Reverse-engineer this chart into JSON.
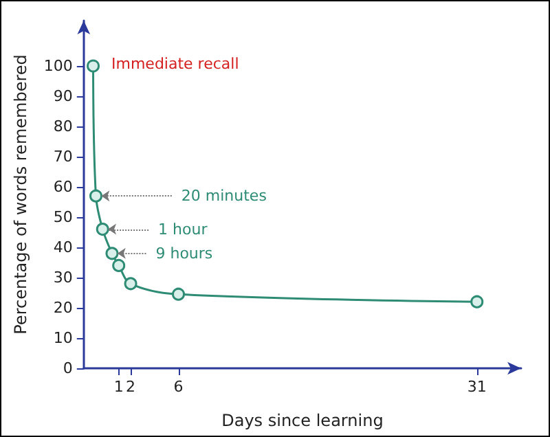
{
  "chart_data": {
    "type": "line",
    "xlabel": "Days since learning",
    "ylabel": "Percentage of words remembered",
    "x": [
      -1.14,
      -0.91,
      -0.35,
      0.44,
      1,
      2,
      6,
      31
    ],
    "series": [
      {
        "color": "#2e8b74",
        "values": [
          100,
          57,
          46,
          38,
          34,
          28,
          24.5,
          22
        ]
      }
    ],
    "xlim": [
      -1.93,
      34.7
    ],
    "xticks": [
      1,
      2,
      6,
      31
    ],
    "ylim": [
      0,
      115
    ],
    "yticks": [
      0,
      10,
      20,
      30,
      40,
      50,
      60,
      70,
      80,
      90,
      100
    ],
    "grid": false,
    "marker": "circle",
    "line_style": "solid",
    "annotations": [
      "Immediate recall",
      {
        "text": "20 minutes",
        "x": -0.91,
        "y": 57
      },
      {
        "text": "1 hour",
        "x": -0.35,
        "y": 46
      },
      {
        "text": "9 hours",
        "x": 0.44,
        "y": 38
      }
    ]
  }
}
